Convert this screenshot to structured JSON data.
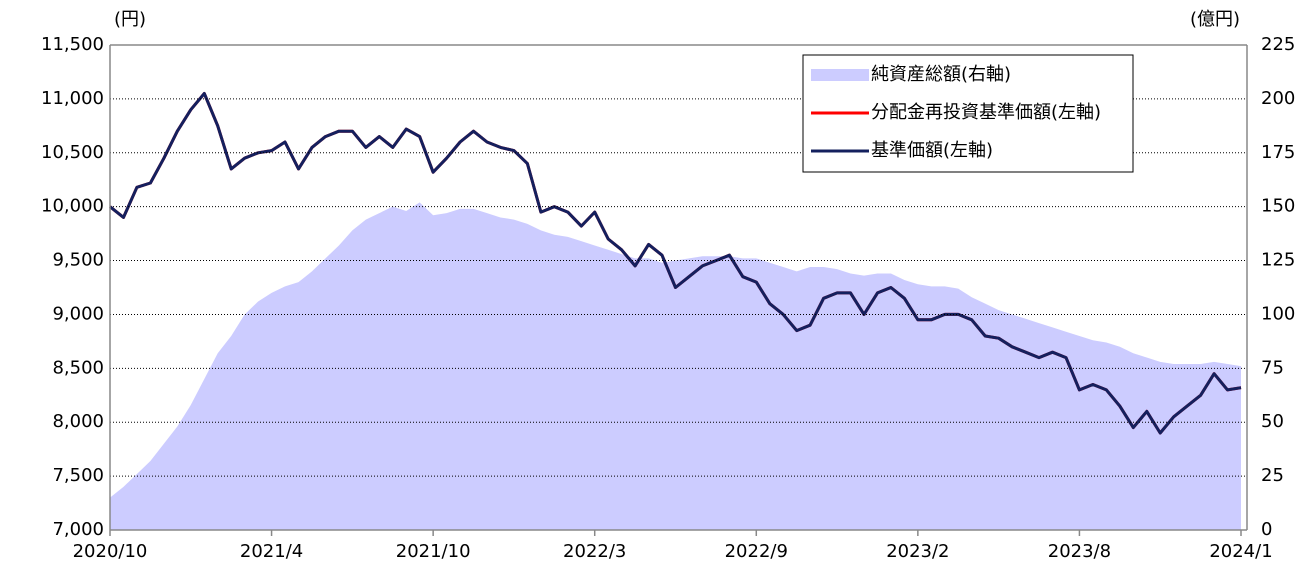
{
  "chart_data": {
    "type": "line",
    "y_unit": "(円)",
    "y2_unit": "(億円)",
    "categories": [
      "2020/10",
      null,
      null,
      null,
      null,
      null,
      null,
      null,
      null,
      null,
      null,
      null,
      "2021/4",
      null,
      null,
      null,
      null,
      null,
      null,
      null,
      null,
      null,
      null,
      null,
      "2021/10",
      null,
      null,
      null,
      null,
      null,
      null,
      null,
      null,
      null,
      null,
      null,
      "2022/3",
      null,
      null,
      null,
      null,
      null,
      null,
      null,
      null,
      null,
      null,
      null,
      "2022/9",
      null,
      null,
      null,
      null,
      null,
      null,
      null,
      null,
      null,
      null,
      null,
      "2023/2",
      null,
      null,
      null,
      null,
      null,
      null,
      null,
      null,
      null,
      null,
      null,
      "2023/8",
      null,
      null,
      null,
      null,
      null,
      null,
      null,
      null,
      null,
      null,
      null,
      "2024/1"
    ],
    "series": [
      {
        "name": "純資産総額(右軸)",
        "type": "area",
        "axis": "y2",
        "color": "#ccccff",
        "values": [
          15,
          20,
          26,
          32,
          40,
          48,
          58,
          70,
          82,
          90,
          100,
          106,
          110,
          113,
          115,
          120,
          126,
          132,
          139,
          144,
          147,
          150,
          148,
          152,
          146,
          147,
          149,
          149,
          147,
          145,
          144,
          142,
          139,
          137,
          136,
          134,
          132,
          130,
          128,
          126,
          126,
          124,
          125,
          126,
          127,
          127,
          127,
          126,
          126,
          124,
          122,
          120,
          122,
          122,
          121,
          119,
          118,
          119,
          119,
          116,
          114,
          113,
          113,
          112,
          108,
          105,
          102,
          100,
          98,
          96,
          94,
          92,
          90,
          88,
          87,
          85,
          82,
          80,
          78,
          77,
          77,
          77,
          78,
          77,
          76
        ]
      },
      {
        "name": "分配金再投資基準価額(左軸)",
        "type": "line",
        "color": "#ff0000",
        "values": [
          10000,
          9900,
          10180,
          10220,
          10450,
          10700,
          10900,
          11050,
          10750,
          10350,
          10450,
          10500,
          10520,
          10600,
          10350,
          10550,
          10650,
          10700,
          10700,
          10550,
          10650,
          10550,
          10720,
          10650,
          10320,
          10450,
          10600,
          10700,
          10600,
          10550,
          10520,
          10400,
          9950,
          10000,
          9950,
          9820,
          9950,
          9700,
          9600,
          9450,
          9650,
          9550,
          9250,
          9350,
          9450,
          9500,
          9550,
          9350,
          9300,
          9100,
          9000,
          8850,
          8900,
          9150,
          9200,
          9200,
          9000,
          9200,
          9250,
          9150,
          8950,
          8950,
          9000,
          9000,
          8950,
          8800,
          8780,
          8700,
          8650,
          8600,
          8650,
          8600,
          8300,
          8350,
          8300,
          8150,
          7950,
          8100,
          7900,
          8050,
          8150,
          8250,
          8450,
          8300,
          8320
        ]
      },
      {
        "name": "基準価額(左軸)",
        "type": "line",
        "color": "#14205e",
        "values": [
          10000,
          9900,
          10180,
          10220,
          10450,
          10700,
          10900,
          11050,
          10750,
          10350,
          10450,
          10500,
          10520,
          10600,
          10350,
          10550,
          10650,
          10700,
          10700,
          10550,
          10650,
          10550,
          10720,
          10650,
          10320,
          10450,
          10600,
          10700,
          10600,
          10550,
          10520,
          10400,
          9950,
          10000,
          9950,
          9820,
          9950,
          9700,
          9600,
          9450,
          9650,
          9550,
          9250,
          9350,
          9450,
          9500,
          9550,
          9350,
          9300,
          9100,
          9000,
          8850,
          8900,
          9150,
          9200,
          9200,
          9000,
          9200,
          9250,
          9150,
          8950,
          8950,
          9000,
          9000,
          8950,
          8800,
          8780,
          8700,
          8650,
          8600,
          8650,
          8600,
          8300,
          8350,
          8300,
          8150,
          7950,
          8100,
          7900,
          8050,
          8150,
          8250,
          8450,
          8300,
          8320
        ]
      }
    ],
    "ylim": [
      7000,
      11500
    ],
    "yticks": [
      {
        "value": 7000,
        "label": "7,000"
      },
      {
        "value": 7500,
        "label": "7,500"
      },
      {
        "value": 8000,
        "label": "8,000"
      },
      {
        "value": 8500,
        "label": "8,500"
      },
      {
        "value": 9000,
        "label": "9,000"
      },
      {
        "value": 9500,
        "label": "9,500"
      },
      {
        "value": 10000,
        "label": "10,000"
      },
      {
        "value": 10500,
        "label": "10,500"
      },
      {
        "value": 11000,
        "label": "11,000"
      },
      {
        "value": 11500,
        "label": "11,500"
      }
    ],
    "y2lim": [
      0,
      225
    ],
    "y2ticks": [
      0,
      25,
      50,
      75,
      100,
      125,
      150,
      175,
      200,
      225
    ],
    "grid": true,
    "legend": "top-right"
  }
}
